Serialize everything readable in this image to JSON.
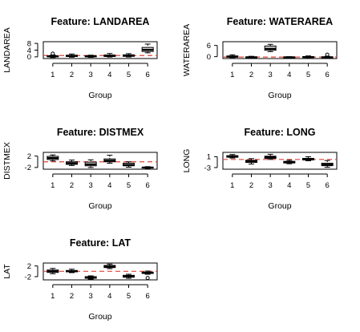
{
  "chart_data": [
    {
      "type": "boxplot",
      "title": "Feature: LANDAREA",
      "xlabel": "Group",
      "ylabel": "LANDAREA",
      "categories": [
        "1",
        "2",
        "3",
        "4",
        "5",
        "6"
      ],
      "yticks": [
        0,
        4,
        8
      ],
      "ylim": [
        -1,
        9
      ],
      "reference_line": 0.8,
      "boxes": [
        {
          "min": -0.4,
          "q1": 0,
          "median": 0.3,
          "q3": 0.7,
          "max": 1.1,
          "outliers": [
            1.9
          ]
        },
        {
          "min": -0.2,
          "q1": 0.2,
          "median": 0.6,
          "q3": 1.0,
          "max": 1.7,
          "outliers": []
        },
        {
          "min": -0.3,
          "q1": 0,
          "median": 0.3,
          "q3": 0.7,
          "max": 1.0,
          "outliers": []
        },
        {
          "min": -0.1,
          "q1": 0.2,
          "median": 0.6,
          "q3": 1.1,
          "max": 2.0,
          "outliers": []
        },
        {
          "min": -0.1,
          "q1": 0.3,
          "median": 0.7,
          "q3": 1.2,
          "max": 1.9,
          "outliers": []
        },
        {
          "min": 2.4,
          "q1": 3.2,
          "median": 4.2,
          "q3": 5.6,
          "max": 7.6,
          "outliers": []
        }
      ]
    },
    {
      "type": "boxplot",
      "title": "Feature: WATERAREA",
      "xlabel": "Group",
      "ylabel": "WATERAREA",
      "categories": [
        "1",
        "2",
        "3",
        "4",
        "5",
        "6"
      ],
      "yticks": [
        0,
        6
      ],
      "ylim": [
        -1,
        8
      ],
      "reference_line": -0.2,
      "boxes": [
        {
          "min": -0.5,
          "q1": -0.3,
          "median": 0,
          "q3": 0.4,
          "max": 1.0,
          "outliers": []
        },
        {
          "min": -0.5,
          "q1": -0.4,
          "median": -0.3,
          "q3": -0.1,
          "max": 0.2,
          "outliers": []
        },
        {
          "min": 2.7,
          "q1": 3.4,
          "median": 4.2,
          "q3": 5.7,
          "max": 6.6,
          "outliers": []
        },
        {
          "min": -0.5,
          "q1": -0.4,
          "median": -0.3,
          "q3": -0.2,
          "max": 0,
          "outliers": []
        },
        {
          "min": -0.5,
          "q1": -0.3,
          "median": -0.2,
          "q3": 0,
          "max": 0.4,
          "outliers": []
        },
        {
          "min": -0.5,
          "q1": -0.4,
          "median": -0.3,
          "q3": -0.1,
          "max": 0.2,
          "outliers": [
            1.1
          ]
        }
      ]
    },
    {
      "type": "boxplot",
      "title": "Feature: DISTMEX",
      "xlabel": "Group",
      "ylabel": "DISTMEX",
      "categories": [
        "1",
        "2",
        "3",
        "4",
        "5",
        "6"
      ],
      "yticks": [
        -2,
        2
      ],
      "ylim": [
        -2.6,
        3.3
      ],
      "reference_line": 0,
      "boxes": [
        {
          "min": 0.3,
          "q1": 0.8,
          "median": 1.3,
          "q3": 1.9,
          "max": 2.4,
          "outliers": []
        },
        {
          "min": -1.3,
          "q1": -0.9,
          "median": -0.5,
          "q3": 0,
          "max": 0.6,
          "outliers": []
        },
        {
          "min": -2.0,
          "q1": -1.4,
          "median": -0.9,
          "q3": -0.1,
          "max": 0.7,
          "outliers": []
        },
        {
          "min": -0.5,
          "q1": 0,
          "median": 0.4,
          "q3": 1.0,
          "max": 2.3,
          "outliers": []
        },
        {
          "min": -1.9,
          "q1": -1.4,
          "median": -1.1,
          "q3": -0.5,
          "max": 0,
          "outliers": []
        },
        {
          "min": -2.4,
          "q1": -2.2,
          "median": -2.0,
          "q3": -1.9,
          "max": -1.7,
          "outliers": []
        }
      ]
    },
    {
      "type": "boxplot",
      "title": "Feature: LONG",
      "xlabel": "Group",
      "ylabel": "LONG",
      "categories": [
        "1",
        "2",
        "3",
        "4",
        "5",
        "6"
      ],
      "yticks": [
        -3,
        1
      ],
      "ylim": [
        -3.6,
        2.6
      ],
      "reference_line": 0,
      "boxes": [
        {
          "min": 0.5,
          "q1": 0.8,
          "median": 1.1,
          "q3": 1.4,
          "max": 1.8,
          "outliers": []
        },
        {
          "min": -1.7,
          "q1": -1.1,
          "median": -0.7,
          "q3": -0.3,
          "max": 0.3,
          "outliers": []
        },
        {
          "min": 0,
          "q1": 0.4,
          "median": 0.8,
          "q3": 1.2,
          "max": 1.9,
          "outliers": []
        },
        {
          "min": -1.6,
          "q1": -1.3,
          "median": -1.0,
          "q3": -0.7,
          "max": -0.3,
          "outliers": []
        },
        {
          "min": -0.5,
          "q1": -0.2,
          "median": 0.1,
          "q3": 0.4,
          "max": 1.0,
          "outliers": []
        },
        {
          "min": -2.9,
          "q1": -2.3,
          "median": -1.9,
          "q3": -1.4,
          "max": -0.4,
          "outliers": []
        }
      ]
    },
    {
      "type": "boxplot",
      "title": "Feature: LAT",
      "xlabel": "Group",
      "ylabel": "LAT",
      "categories": [
        "1",
        "2",
        "3",
        "4",
        "5",
        "6"
      ],
      "yticks": [
        -2,
        2
      ],
      "ylim": [
        -3.2,
        3.1
      ],
      "reference_line": 0,
      "boxes": [
        {
          "min": -0.9,
          "q1": -0.4,
          "median": 0,
          "q3": 0.5,
          "max": 1.1,
          "outliers": []
        },
        {
          "min": -0.5,
          "q1": -0.2,
          "median": 0.1,
          "q3": 0.3,
          "max": 0.8,
          "outliers": []
        },
        {
          "min": -2.9,
          "q1": -2.6,
          "median": -2.3,
          "q3": -2.0,
          "max": -1.7,
          "outliers": []
        },
        {
          "min": 1.0,
          "q1": 1.4,
          "median": 1.8,
          "q3": 2.2,
          "max": 2.7,
          "outliers": []
        },
        {
          "min": -2.6,
          "q1": -2.2,
          "median": -1.8,
          "q3": -1.5,
          "max": -1.1,
          "outliers": []
        },
        {
          "min": -1.1,
          "q1": -0.8,
          "median": -0.5,
          "q3": -0.3,
          "max": 0.1,
          "outliers": [
            -2.5
          ]
        }
      ]
    }
  ]
}
